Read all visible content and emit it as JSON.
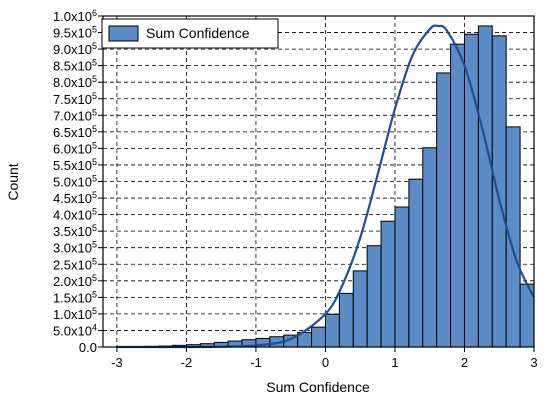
{
  "chart_data": {
    "type": "bar",
    "xlabel": "Sum Confidence",
    "ylabel": "Count",
    "xlim": [
      -3.2,
      3.0
    ],
    "ylim": [
      0,
      1000000
    ],
    "x_ticks": [
      -3,
      -2,
      -1,
      0,
      1,
      2,
      3
    ],
    "x_tick_labels": [
      "-3",
      "-2",
      "-1",
      "0",
      "1",
      "2",
      "3"
    ],
    "y_tick_labels": [
      {
        "value": 0,
        "mantissa": "0.0",
        "exp": ""
      },
      {
        "value": 50000,
        "mantissa": "5.0x10",
        "exp": "4"
      },
      {
        "value": 100000,
        "mantissa": "1.0x10",
        "exp": "5"
      },
      {
        "value": 150000,
        "mantissa": "1.5x10",
        "exp": "5"
      },
      {
        "value": 200000,
        "mantissa": "2.0x10",
        "exp": "5"
      },
      {
        "value": 250000,
        "mantissa": "2.5x10",
        "exp": "5"
      },
      {
        "value": 300000,
        "mantissa": "3.0x10",
        "exp": "5"
      },
      {
        "value": 350000,
        "mantissa": "3.5x10",
        "exp": "5"
      },
      {
        "value": 400000,
        "mantissa": "4.0x10",
        "exp": "5"
      },
      {
        "value": 450000,
        "mantissa": "4.5x10",
        "exp": "5"
      },
      {
        "value": 500000,
        "mantissa": "5.0x10",
        "exp": "5"
      },
      {
        "value": 550000,
        "mantissa": "5.5x10",
        "exp": "5"
      },
      {
        "value": 600000,
        "mantissa": "6.0x10",
        "exp": "5"
      },
      {
        "value": 650000,
        "mantissa": "6.5x10",
        "exp": "5"
      },
      {
        "value": 700000,
        "mantissa": "7.0x10",
        "exp": "5"
      },
      {
        "value": 750000,
        "mantissa": "7.5x10",
        "exp": "5"
      },
      {
        "value": 800000,
        "mantissa": "8.0x10",
        "exp": "5"
      },
      {
        "value": 850000,
        "mantissa": "8.5x10",
        "exp": "5"
      },
      {
        "value": 900000,
        "mantissa": "9.0x10",
        "exp": "5"
      },
      {
        "value": 950000,
        "mantissa": "9.5x10",
        "exp": "5"
      },
      {
        "value": 1000000,
        "mantissa": "1.0x10",
        "exp": "6"
      }
    ],
    "grid": true,
    "legend": {
      "position": "top-left",
      "label": "Sum Confidence"
    },
    "series": [
      {
        "name": "Sum Confidence",
        "kind": "histogram",
        "bin_width": 0.2,
        "bin_lefts": [
          -3.2,
          -3.0,
          -2.8,
          -2.6,
          -2.4,
          -2.2,
          -2.0,
          -1.8,
          -1.6,
          -1.4,
          -1.2,
          -1.0,
          -0.8,
          -0.6,
          -0.4,
          -0.2,
          0.0,
          0.2,
          0.4,
          0.6,
          0.8,
          1.0,
          1.2,
          1.4,
          1.6,
          1.8,
          2.0,
          2.2,
          2.4,
          2.6,
          2.8
        ],
        "values": [
          0,
          0,
          1000,
          2000,
          3000,
          5000,
          7000,
          10000,
          14000,
          18000,
          22000,
          26000,
          31000,
          36000,
          44000,
          60000,
          99000,
          162000,
          230000,
          306000,
          380000,
          423000,
          507000,
          602000,
          828000,
          915000,
          945000,
          970000,
          940000,
          665000,
          190000
        ],
        "fill": "#5b8cc5",
        "edge": "#000000"
      },
      {
        "name": "",
        "kind": "fit-curve",
        "x": [
          -3.0,
          -2.5,
          -2.0,
          -1.5,
          -1.0,
          -0.5,
          0.0,
          0.25,
          0.5,
          0.75,
          1.0,
          1.25,
          1.5,
          1.62,
          1.75,
          2.0,
          2.25,
          2.5,
          2.75,
          3.0
        ],
        "values": [
          0,
          0,
          0,
          1000,
          5000,
          24000,
          100000,
          190000,
          330000,
          520000,
          720000,
          880000,
          960000,
          970000,
          955000,
          850000,
          665000,
          445000,
          260000,
          150000
        ],
        "color": "#1f4e96"
      }
    ]
  }
}
